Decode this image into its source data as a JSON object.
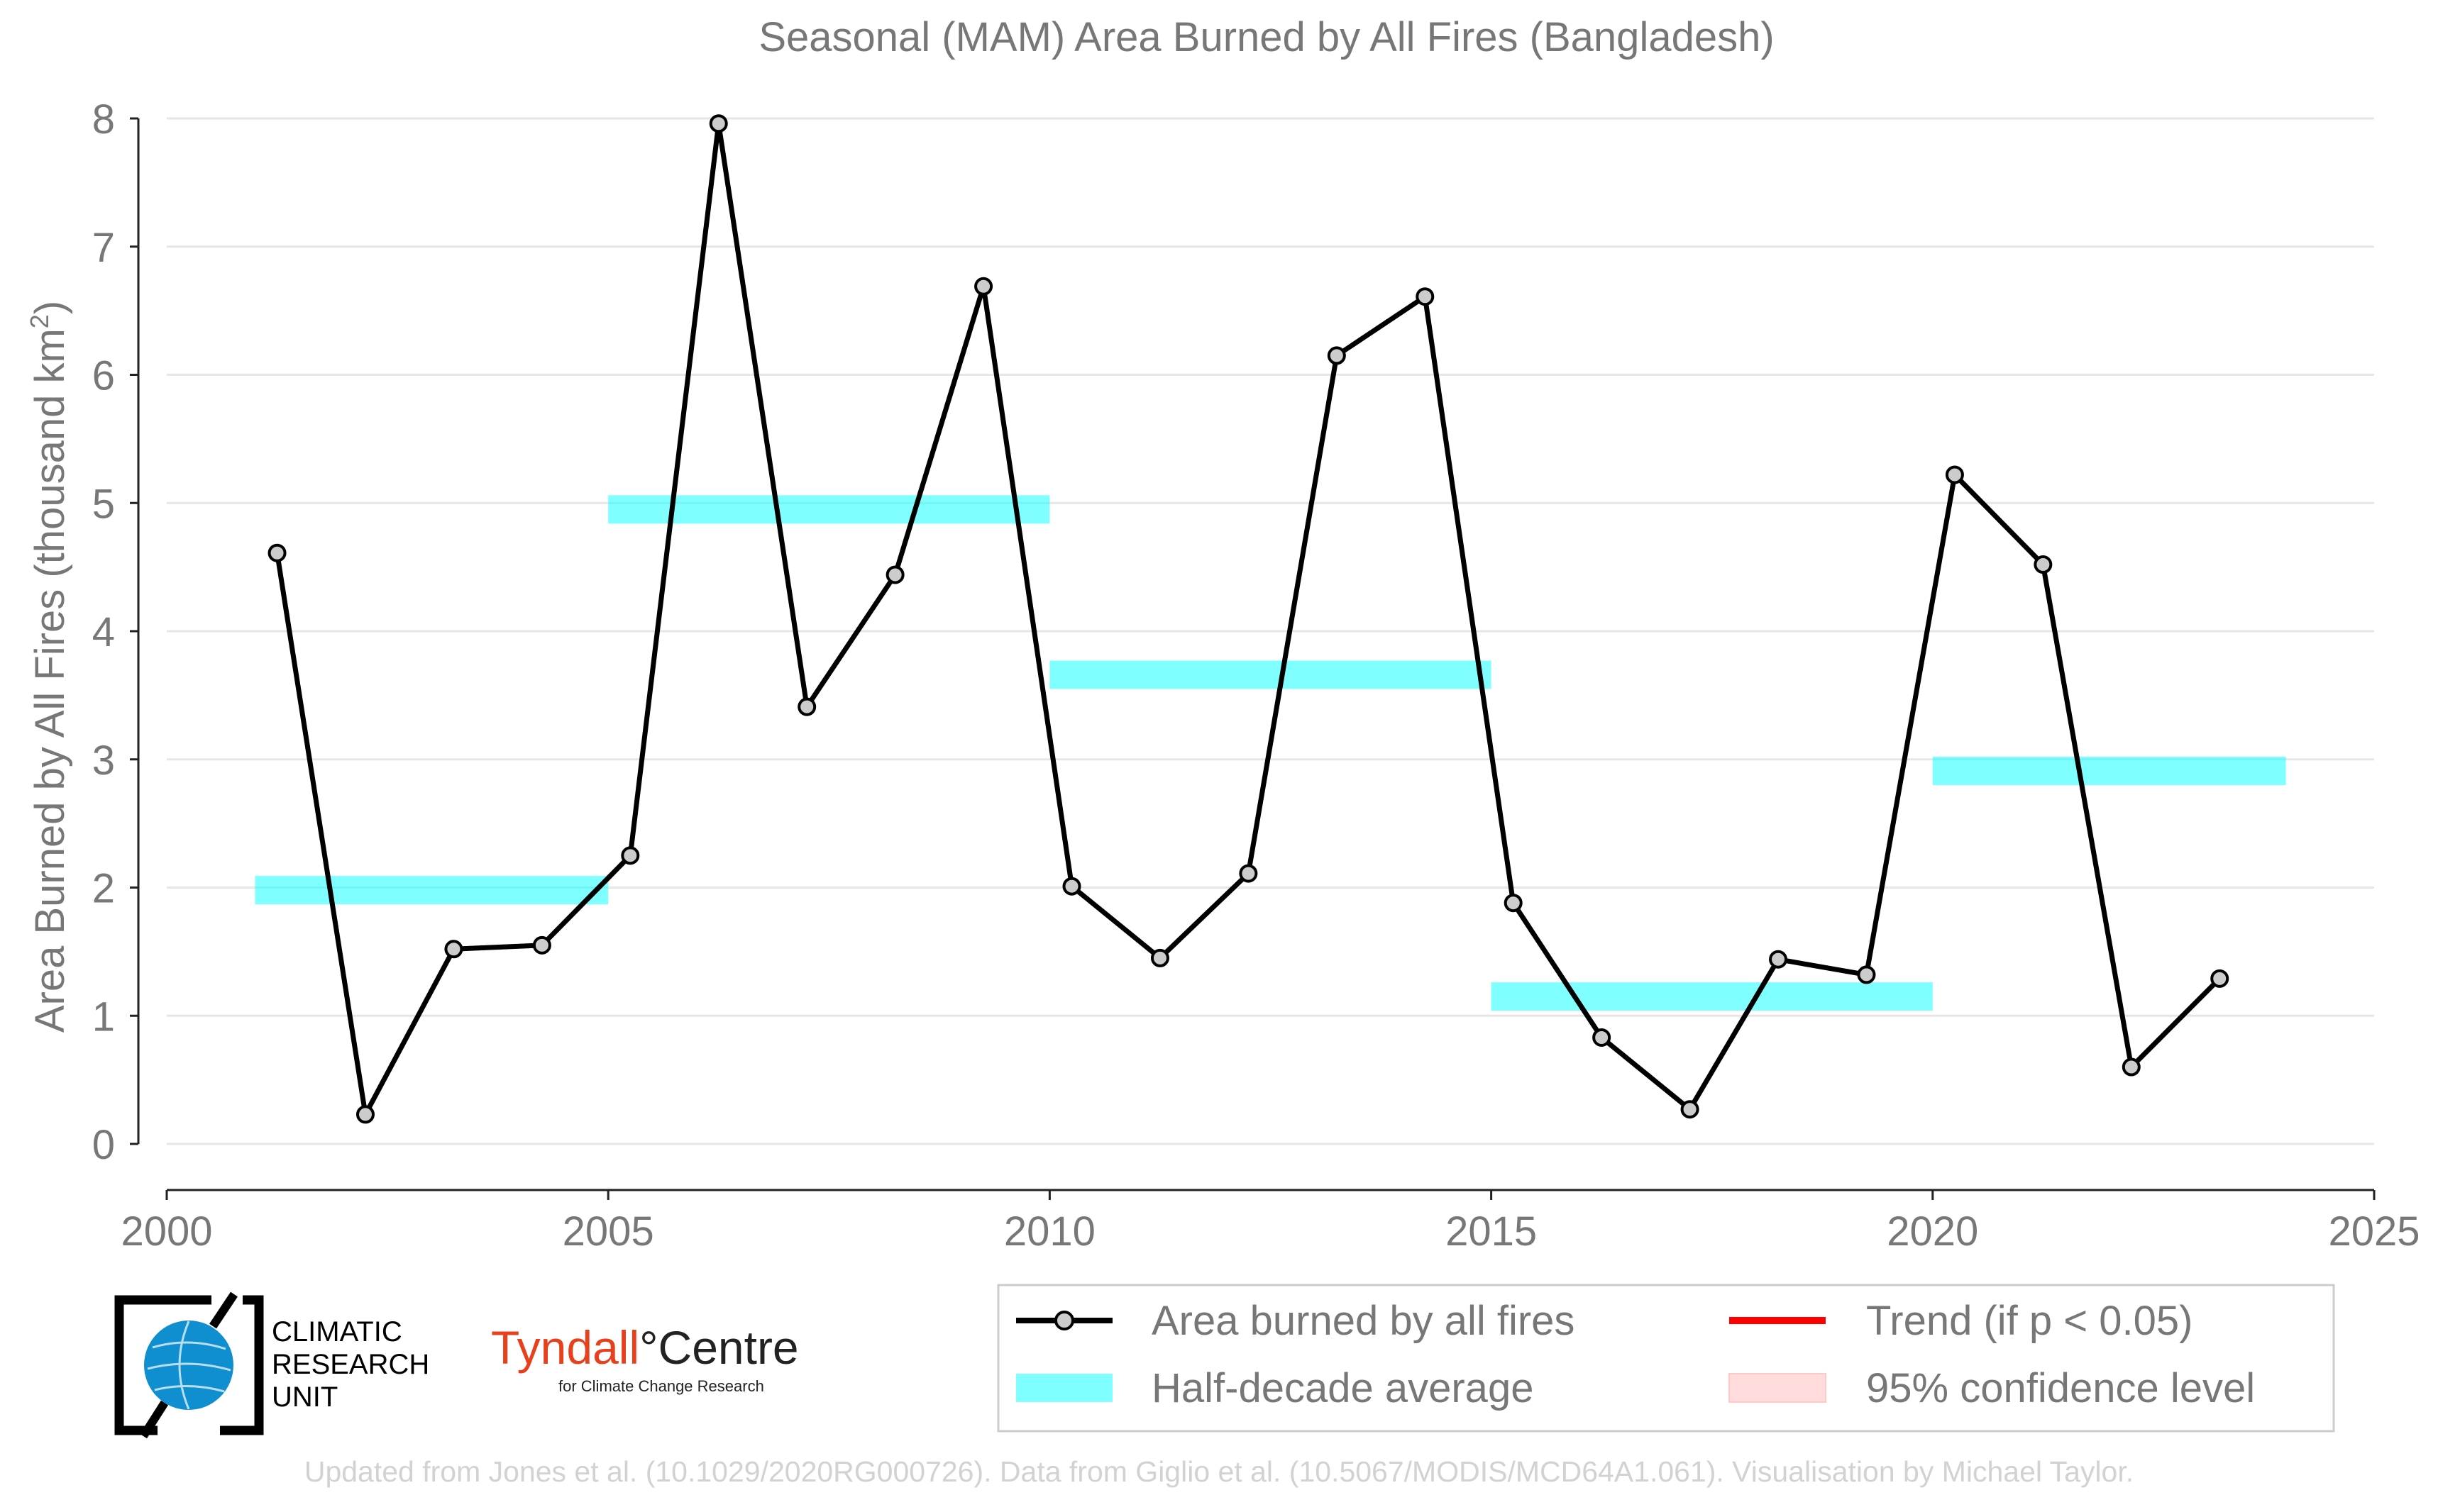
{
  "chart_data": {
    "type": "line",
    "title": "Seasonal (MAM) Area Burned by All Fires (Bangladesh)",
    "ylabel": "Area Burned by All Fires (thousand km",
    "ylabel_sup": "2",
    "ylabel_close": ")",
    "xlabel": "",
    "xlim": [
      2000,
      2025
    ],
    "ylim": [
      0,
      8
    ],
    "x_ticks": [
      2000,
      2005,
      2010,
      2015,
      2020,
      2025
    ],
    "y_ticks": [
      0,
      1,
      2,
      3,
      4,
      5,
      6,
      7,
      8
    ],
    "grid": "horizontal",
    "series": [
      {
        "name": "Area burned by all fires",
        "color": "#000000",
        "marker_fill": "#cccccc",
        "x": [
          2001.25,
          2002.25,
          2003.25,
          2004.25,
          2005.25,
          2006.25,
          2007.25,
          2008.25,
          2009.25,
          2010.25,
          2011.25,
          2012.25,
          2013.25,
          2014.25,
          2015.25,
          2016.25,
          2017.25,
          2018.25,
          2019.25,
          2020.25,
          2021.25,
          2022.25,
          2023.25
        ],
        "y": [
          4.61,
          0.23,
          1.52,
          1.55,
          2.25,
          7.96,
          3.41,
          4.44,
          6.69,
          2.01,
          1.45,
          2.11,
          6.15,
          6.61,
          1.88,
          0.83,
          0.27,
          1.44,
          1.32,
          5.22,
          4.52,
          0.6,
          1.29
        ]
      }
    ],
    "half_decade_average": {
      "name": "Half-decade average",
      "color": "#00ffff",
      "segments": [
        {
          "x_start": 2001,
          "x_end": 2005,
          "value": 1.98
        },
        {
          "x_start": 2005,
          "x_end": 2010,
          "value": 4.95
        },
        {
          "x_start": 2010,
          "x_end": 2015,
          "value": 3.66
        },
        {
          "x_start": 2015,
          "x_end": 2020,
          "value": 1.15
        },
        {
          "x_start": 2020,
          "x_end": 2024,
          "value": 2.91
        }
      ]
    },
    "legend": {
      "placement": "bottom-right",
      "entries": [
        {
          "label": "Area burned by all fires",
          "kind": "line-marker",
          "color": "#000000"
        },
        {
          "label": "Trend (if p < 0.05)",
          "kind": "line",
          "color": "#ff0000"
        },
        {
          "label": "Half-decade average",
          "kind": "band",
          "color": "#00ffff"
        },
        {
          "label": "95% confidence level",
          "kind": "band",
          "color": "#ffcccc"
        }
      ]
    }
  },
  "logos": {
    "cru_text": [
      "CLIMATIC",
      "RESEARCH",
      "UNIT"
    ],
    "tyndall_name": "Tyndall",
    "tyndall_degree": "°",
    "tyndall_centre": "Centre",
    "tyndall_sub": "for Climate Change Research"
  },
  "footer": "Updated from Jones et al. (10.1029/2020RG000726). Data from Giglio et al. (10.5067/MODIS/MCD64A1.061). Visualisation by Michael Taylor."
}
